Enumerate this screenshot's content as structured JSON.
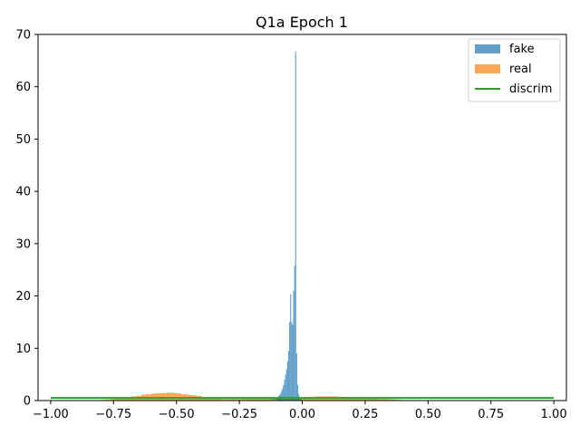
{
  "chart_data": {
    "type": "histogram",
    "title": "Q1a Epoch 1",
    "xlim": [
      -1.05,
      1.05
    ],
    "ylim": [
      0,
      70
    ],
    "x_ticks": [
      -1.0,
      -0.75,
      -0.5,
      -0.25,
      0.0,
      0.25,
      0.5,
      0.75,
      1.0
    ],
    "x_tick_labels": [
      "−1.00",
      "−0.75",
      "−0.50",
      "−0.25",
      "0.00",
      "0.25",
      "0.50",
      "0.75",
      "1.00"
    ],
    "y_ticks": [
      0,
      10,
      20,
      30,
      40,
      50,
      60,
      70
    ],
    "y_tick_labels": [
      "0",
      "10",
      "20",
      "30",
      "40",
      "50",
      "60",
      "70"
    ],
    "legend_position": "top-right",
    "series": [
      {
        "name": "fake",
        "kind": "hist",
        "color": "#1f77b4",
        "opacity": 0.7,
        "bin_width": 0.004,
        "x": [
          -0.13,
          -0.12,
          -0.11,
          -0.104,
          -0.1,
          -0.096,
          -0.092,
          -0.088,
          -0.084,
          -0.08,
          -0.076,
          -0.072,
          -0.068,
          -0.064,
          -0.06,
          -0.056,
          -0.052,
          -0.048,
          -0.044,
          -0.04,
          -0.036,
          -0.032,
          -0.028,
          -0.024,
          -0.02,
          -0.016,
          -0.012,
          -0.008,
          -0.004
        ],
        "values": [
          0.2,
          0.3,
          0.4,
          0.5,
          0.7,
          0.9,
          1.0,
          1.3,
          1.8,
          2.3,
          3.0,
          4.0,
          5.0,
          6.0,
          7.5,
          9.5,
          15.0,
          20.3,
          15.0,
          14.5,
          21.0,
          25.8,
          66.7,
          9.0,
          3.0,
          1.2,
          0.6,
          0.3,
          0.1
        ]
      },
      {
        "name": "real",
        "kind": "hist",
        "color": "#ff7f0e",
        "opacity": 0.7,
        "bin_width": 0.02,
        "x": [
          -0.8,
          -0.78,
          -0.76,
          -0.74,
          -0.72,
          -0.7,
          -0.68,
          -0.66,
          -0.64,
          -0.62,
          -0.6,
          -0.58,
          -0.56,
          -0.54,
          -0.52,
          -0.5,
          -0.48,
          -0.46,
          -0.44,
          -0.42,
          -0.4,
          -0.38,
          -0.36,
          -0.34,
          -0.32,
          -0.3,
          -0.28,
          -0.26,
          -0.24,
          -0.22,
          -0.2,
          -0.18,
          -0.16,
          -0.14,
          -0.12,
          -0.1,
          -0.08,
          -0.06,
          -0.04,
          -0.02,
          0.0,
          0.02,
          0.04,
          0.06,
          0.08,
          0.1,
          0.12,
          0.14,
          0.16,
          0.18,
          0.2,
          0.22,
          0.24,
          0.26,
          0.28,
          0.3,
          0.32,
          0.34,
          0.36,
          0.38,
          0.4
        ],
        "values": [
          0.15,
          0.2,
          0.3,
          0.4,
          0.5,
          0.6,
          0.8,
          0.9,
          1.1,
          1.2,
          1.3,
          1.4,
          1.45,
          1.5,
          1.45,
          1.35,
          1.2,
          1.1,
          1.0,
          0.9,
          0.5,
          0.45,
          0.4,
          0.35,
          0.3,
          0.3,
          0.3,
          0.3,
          0.35,
          0.35,
          0.35,
          0.35,
          0.35,
          0.35,
          0.35,
          0.35,
          0.4,
          0.4,
          0.45,
          0.5,
          0.55,
          0.65,
          0.75,
          0.8,
          0.8,
          0.8,
          0.8,
          0.75,
          0.7,
          0.6,
          0.55,
          0.5,
          0.45,
          0.4,
          0.35,
          0.3,
          0.3,
          0.25,
          0.2,
          0.15,
          0.1
        ]
      },
      {
        "name": "discrim",
        "kind": "line",
        "color": "#2ca02c",
        "x": [
          -1.0,
          1.0
        ],
        "values": [
          0.5,
          0.5
        ]
      }
    ]
  }
}
